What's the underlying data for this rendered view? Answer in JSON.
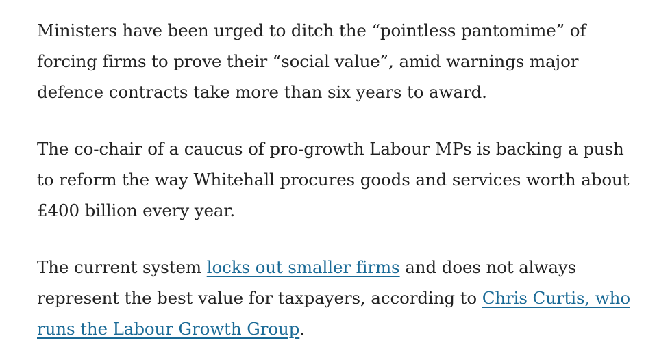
{
  "article": {
    "paragraphs": [
      {
        "text": "Ministers have been urged to ditch the “pointless pantomime” of forcing firms to prove their “social value”, amid warnings major defence contracts take more than six years to award."
      },
      {
        "text": "The co-chair of a caucus of pro-growth Labour MPs is backing a push to reform the way Whitehall procures goods and services worth about £400 billion every year."
      },
      {
        "text_before_link1": "The current system ",
        "link1": "locks out smaller firms",
        "text_between_links": " and does not always represent the best value for taxpayers, according to ",
        "link2": "Chris Curtis, who runs the Labour Growth Group",
        "text_after_link2": "."
      }
    ]
  },
  "colors": {
    "text": "#222222",
    "link": "#1a6a96",
    "background": "#ffffff"
  }
}
